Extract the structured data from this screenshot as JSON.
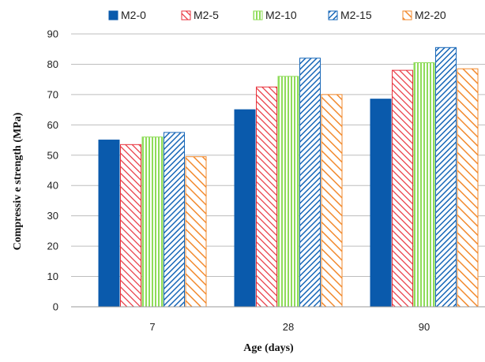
{
  "chart_data": {
    "type": "bar",
    "title": "",
    "xlabel": "Age (days)",
    "ylabel": "Compressiv e strength (MPa)",
    "categories": [
      "7",
      "28",
      "90"
    ],
    "ylim": [
      0,
      90
    ],
    "yticks": [
      0,
      10,
      20,
      30,
      40,
      50,
      60,
      70,
      80,
      90
    ],
    "grid": true,
    "legend_position": "top",
    "series": [
      {
        "name": "M2-0",
        "values": [
          55,
          65,
          68.5
        ],
        "color": "#0a5aac",
        "pattern": "solid"
      },
      {
        "name": "M2-5",
        "values": [
          53.5,
          72.5,
          78
        ],
        "color": "#e8323c",
        "pattern": "hatch-left"
      },
      {
        "name": "M2-10",
        "values": [
          56,
          76,
          80.5
        ],
        "color": "#8fdc5a",
        "pattern": "vertical-lines"
      },
      {
        "name": "M2-15",
        "values": [
          57.5,
          82,
          85.5
        ],
        "color": "#1767b8",
        "pattern": "hatch-right-dense"
      },
      {
        "name": "M2-20",
        "values": [
          49.5,
          70,
          78.5
        ],
        "color": "#f28a2e",
        "pattern": "hatch-left-wide"
      }
    ]
  }
}
